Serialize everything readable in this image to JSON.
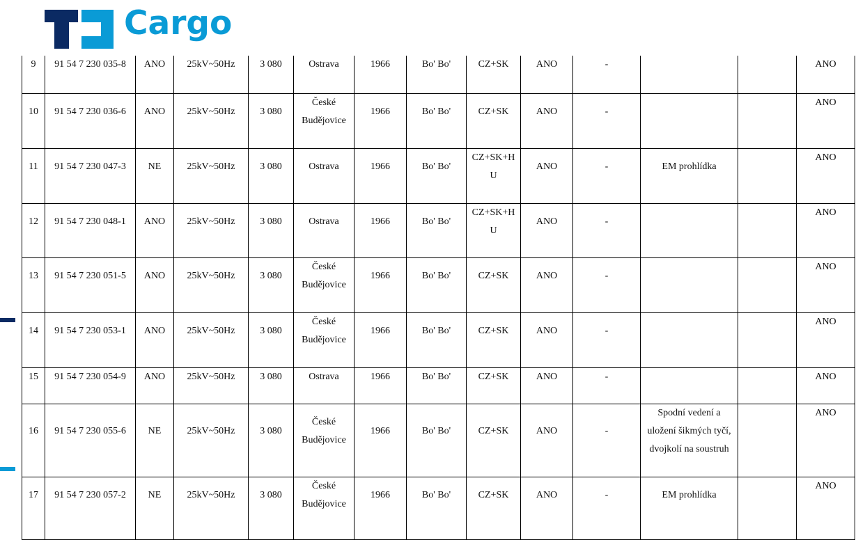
{
  "logo": {
    "text": "Cargo",
    "colors": {
      "navy": "#0b2a63",
      "blue": "#0a9bd6"
    }
  },
  "rows": [
    {
      "no": "9",
      "id": "91 54 7 230 035-8",
      "a": "ANO",
      "power": "25kV~50Hz",
      "kw": "3 080",
      "depot": [
        "Ostrava"
      ],
      "year": "1966",
      "axle": "Bo' Bo'",
      "country": [
        "CZ+SK"
      ],
      "b": "ANO",
      "c": "-",
      "note": [],
      "d": "",
      "e": "ANO"
    },
    {
      "no": "10",
      "id": "91 54 7 230 036-6",
      "a": "ANO",
      "power": "25kV~50Hz",
      "kw": "3 080",
      "depot": [
        "České",
        "Budějovice"
      ],
      "year": "1966",
      "axle": "Bo' Bo'",
      "country": [
        "CZ+SK"
      ],
      "b": "ANO",
      "c": "-",
      "note": [],
      "d": "",
      "e": "ANO"
    },
    {
      "no": "11",
      "id": "91 54 7 230 047-3",
      "a": "NE",
      "power": "25kV~50Hz",
      "kw": "3 080",
      "depot": [
        "Ostrava"
      ],
      "year": "1966",
      "axle": "Bo' Bo'",
      "country": [
        "CZ+SK+H",
        "U"
      ],
      "b": "ANO",
      "c": "-",
      "note": [
        "EM prohlídka"
      ],
      "d": "",
      "e": "ANO"
    },
    {
      "no": "12",
      "id": "91 54 7 230 048-1",
      "a": "ANO",
      "power": "25kV~50Hz",
      "kw": "3 080",
      "depot": [
        "Ostrava"
      ],
      "year": "1966",
      "axle": "Bo' Bo'",
      "country": [
        "CZ+SK+H",
        "U"
      ],
      "b": "ANO",
      "c": "-",
      "note": [],
      "d": "",
      "e": "ANO"
    },
    {
      "no": "13",
      "id": "91 54 7 230 051-5",
      "a": "ANO",
      "power": "25kV~50Hz",
      "kw": "3 080",
      "depot": [
        "České",
        "Budějovice"
      ],
      "year": "1966",
      "axle": "Bo' Bo'",
      "country": [
        "CZ+SK"
      ],
      "b": "ANO",
      "c": "-",
      "note": [],
      "d": "",
      "e": "ANO"
    },
    {
      "no": "14",
      "id": "91 54 7 230 053-1",
      "a": "ANO",
      "power": "25kV~50Hz",
      "kw": "3 080",
      "depot": [
        "České",
        "Budějovice"
      ],
      "year": "1966",
      "axle": "Bo' Bo'",
      "country": [
        "CZ+SK"
      ],
      "b": "ANO",
      "c": "-",
      "note": [],
      "d": "",
      "e": "ANO"
    },
    {
      "no": "15",
      "id": "91 54 7 230 054-9",
      "a": "ANO",
      "power": "25kV~50Hz",
      "kw": "3 080",
      "depot": [
        "Ostrava"
      ],
      "year": "1966",
      "axle": "Bo' Bo'",
      "country": [
        "CZ+SK"
      ],
      "b": "ANO",
      "c": "-",
      "note": [],
      "d": "",
      "e": "ANO"
    },
    {
      "no": "16",
      "id": "91 54 7 230 055-6",
      "a": "NE",
      "power": "25kV~50Hz",
      "kw": "3 080",
      "depot": [
        "České",
        "Budějovice"
      ],
      "year": "1966",
      "axle": "Bo' Bo'",
      "country": [
        "CZ+SK"
      ],
      "b": "ANO",
      "c": "-",
      "note": [
        "Spodní vedení a",
        "uložení šikmých tyčí,",
        "dvojkolí na soustruh"
      ],
      "d": "",
      "e": "ANO"
    },
    {
      "no": "17",
      "id": "91 54 7 230 057-2",
      "a": "NE",
      "power": "25kV~50Hz",
      "kw": "3 080",
      "depot": [
        "České",
        "Budějovice"
      ],
      "year": "1966",
      "axle": "Bo' Bo'",
      "country": [
        "CZ+SK"
      ],
      "b": "ANO",
      "c": "-",
      "note": [
        "EM prohlídka"
      ],
      "d": "",
      "e": "ANO"
    }
  ]
}
